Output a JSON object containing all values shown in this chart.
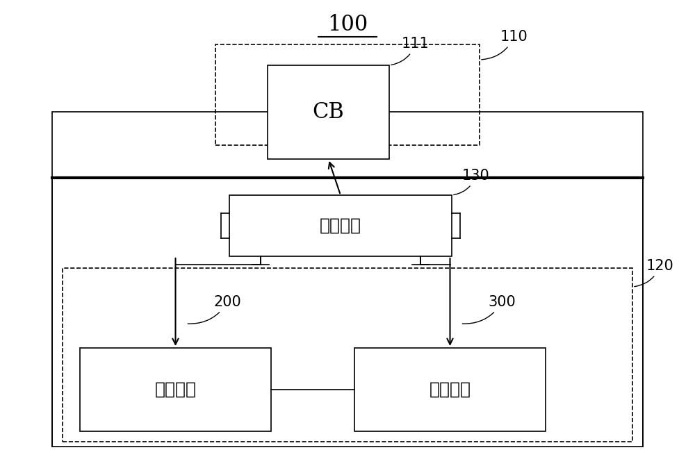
{
  "title": "100",
  "bg_color": "#ffffff",
  "text_color": "#000000",
  "fig_width": 10.0,
  "fig_height": 6.71,
  "label_100": "100",
  "label_110": "110",
  "label_111": "111",
  "label_130": "130",
  "label_120": "120",
  "label_200": "200",
  "label_300": "300",
  "cb_text": "CB",
  "ctrl_text": "控制单元",
  "excite_text": "激励单元",
  "resonance_text": "谐振单元",
  "font_size_title": 22,
  "font_size_cb": 22,
  "font_size_unit": 18,
  "font_size_label": 15
}
